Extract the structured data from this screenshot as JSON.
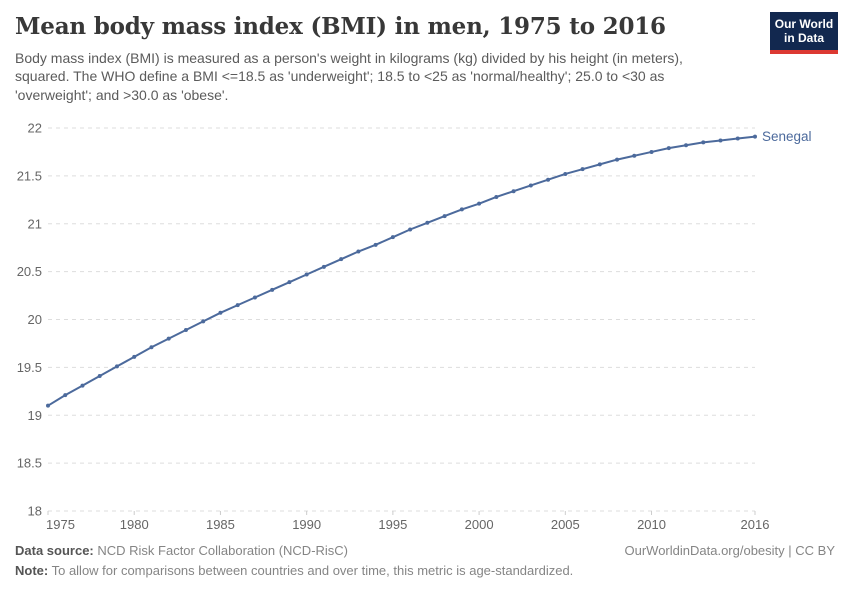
{
  "header": {
    "title": "Mean body mass index (BMI) in men, 1975 to 2016",
    "subtitle_lines": [
      "Body mass index (BMI) is measured as a person's weight in kilograms (kg) divided by his height (in meters),",
      "squared. The WHO define a BMI <=18.5 as 'underweight'; 18.5 to <25 as 'normal/healthy'; 25.0 to <30 as",
      "'overweight'; and >30.0 as 'obese'."
    ]
  },
  "logo": {
    "line1": "Our World",
    "line2": "in Data",
    "bg_color": "#12284f",
    "stripe_color": "#dc3932"
  },
  "chart_data": {
    "type": "line",
    "title": "Mean body mass index (BMI) in men, 1975 to 2016",
    "xlabel": "",
    "ylabel": "",
    "xlim": [
      1975,
      2016
    ],
    "ylim": [
      18,
      22
    ],
    "x_ticks": [
      1975,
      1980,
      1985,
      1990,
      1995,
      2000,
      2005,
      2010,
      2016
    ],
    "y_ticks": [
      18,
      18.5,
      19,
      19.5,
      20,
      20.5,
      21,
      21.5,
      22
    ],
    "grid": "horizontal-dashed",
    "legend_position": "end-of-line-label",
    "line_color": "#4c6a9c",
    "axis_label_color": "#666666",
    "x": [
      1975,
      1976,
      1977,
      1978,
      1979,
      1980,
      1981,
      1982,
      1983,
      1984,
      1985,
      1986,
      1987,
      1988,
      1989,
      1990,
      1991,
      1992,
      1993,
      1994,
      1995,
      1996,
      1997,
      1998,
      1999,
      2000,
      2001,
      2002,
      2003,
      2004,
      2005,
      2006,
      2007,
      2008,
      2009,
      2010,
      2011,
      2012,
      2013,
      2014,
      2015,
      2016
    ],
    "series": [
      {
        "name": "Senegal",
        "values": [
          19.1,
          19.21,
          19.31,
          19.41,
          19.51,
          19.61,
          19.71,
          19.8,
          19.89,
          19.98,
          20.07,
          20.15,
          20.23,
          20.31,
          20.39,
          20.47,
          20.55,
          20.63,
          20.71,
          20.78,
          20.86,
          20.94,
          21.01,
          21.08,
          21.15,
          21.21,
          21.28,
          21.34,
          21.4,
          21.46,
          21.52,
          21.57,
          21.62,
          21.67,
          21.71,
          21.75,
          21.79,
          21.82,
          21.85,
          21.87,
          21.89,
          21.91
        ]
      }
    ]
  },
  "footer": {
    "data_source_label": "Data source:",
    "data_source": " NCD Risk Factor Collaboration (NCD-RisC)",
    "attribution": "OurWorldinData.org/obesity | CC BY",
    "note_label": "Note:",
    "note": " To allow for comparisons between countries and over time, this metric is age-standardized."
  }
}
